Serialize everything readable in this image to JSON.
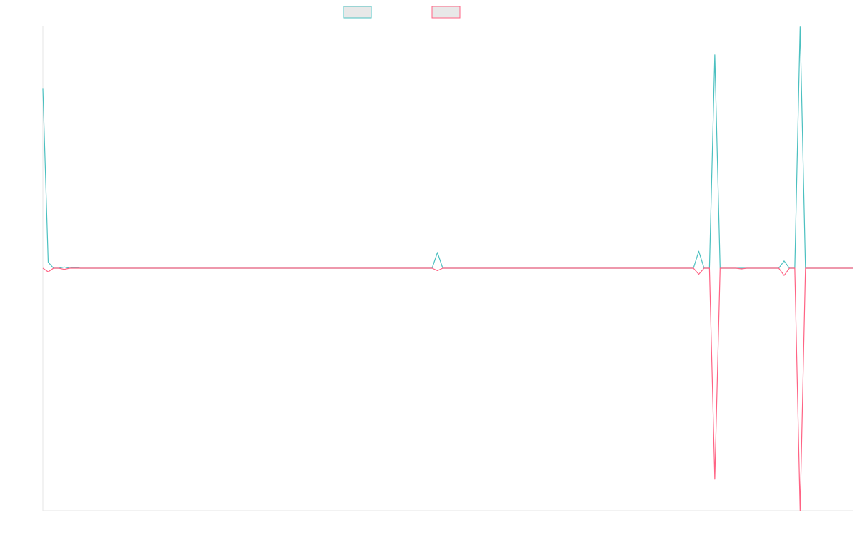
{
  "chart_data": {
    "type": "line",
    "title": "",
    "xlabel": "",
    "ylabel": "",
    "grid": false,
    "legend_position": "top-center",
    "ylim": [
      -100,
      100
    ],
    "x": [
      0,
      1,
      2,
      3,
      4,
      5,
      6,
      7,
      8,
      9,
      10,
      11,
      12,
      13,
      14,
      15,
      16,
      17,
      18,
      19,
      20,
      21,
      22,
      23,
      24,
      25,
      26,
      27,
      28,
      29,
      30,
      31,
      32,
      33,
      34,
      35,
      36,
      37,
      38,
      39,
      40,
      41,
      42,
      43,
      44,
      45,
      46,
      47,
      48,
      49,
      50,
      51,
      52,
      53,
      54,
      55,
      56,
      57,
      58,
      59,
      60,
      61,
      62,
      63,
      64,
      65,
      66,
      67,
      68,
      69,
      70,
      71,
      72,
      73,
      74,
      75,
      76,
      77,
      78,
      79,
      80,
      81,
      82,
      83,
      84,
      85,
      86,
      87,
      88,
      89,
      90,
      91,
      92,
      93,
      94,
      95,
      96,
      97,
      98,
      99,
      100,
      101,
      102,
      103,
      104,
      105,
      106,
      107,
      108,
      109,
      110,
      111,
      112,
      113,
      114,
      115,
      116,
      117,
      118,
      119,
      120,
      121,
      122,
      123,
      124,
      125,
      126,
      127,
      128,
      129,
      130,
      131,
      132,
      133,
      134,
      135,
      136,
      137,
      138,
      139,
      140,
      141,
      142,
      143,
      144,
      145,
      146,
      147,
      148,
      149,
      150,
      151,
      152
    ],
    "series": [
      {
        "color": "#4bc0c0",
        "values": [
          74,
          2.5,
          0,
          0,
          0.5,
          0,
          0.3,
          0,
          0,
          0,
          0,
          0,
          0,
          0,
          0,
          0,
          0,
          0,
          0,
          0,
          0,
          0,
          0,
          0,
          0,
          0,
          0,
          0,
          0,
          0,
          0,
          0,
          0,
          0,
          0,
          0,
          0,
          0,
          0,
          0,
          0,
          0,
          0,
          0,
          0,
          0,
          0,
          0,
          0,
          0,
          0,
          0,
          0,
          0,
          0,
          0,
          0,
          0,
          0,
          0,
          0,
          0,
          0,
          0,
          0,
          0,
          0,
          0,
          0,
          0,
          0,
          0,
          0,
          0,
          6.5,
          0,
          0,
          0,
          0,
          0,
          0,
          0,
          0,
          0,
          0,
          0,
          0,
          0,
          0,
          0,
          0,
          0,
          0,
          0,
          0,
          0,
          0,
          0,
          0,
          0,
          0,
          0,
          0,
          0,
          0,
          0,
          0,
          0,
          0,
          0,
          0,
          0,
          0,
          0,
          0,
          0,
          0,
          0,
          0,
          0,
          0,
          0,
          0,
          7,
          0,
          0,
          88,
          0,
          0,
          0,
          0,
          0,
          0,
          0,
          0,
          0,
          0,
          0,
          0,
          3,
          0,
          0,
          99.5,
          0,
          0,
          0,
          0,
          0,
          0,
          0,
          0,
          0,
          0
        ]
      },
      {
        "color": "#ff6384",
        "values": [
          0,
          -1.5,
          0,
          0,
          -0.5,
          0,
          0,
          0,
          0,
          0,
          0,
          0,
          0,
          0,
          0,
          0,
          0,
          0,
          0,
          0,
          0,
          0,
          0,
          0,
          0,
          0,
          0,
          0,
          0,
          0,
          0,
          0,
          0,
          0,
          0,
          0,
          0,
          0,
          0,
          0,
          0,
          0,
          0,
          0,
          0,
          0,
          0,
          0,
          0,
          0,
          0,
          0,
          0,
          0,
          0,
          0,
          0,
          0,
          0,
          0,
          0,
          0,
          0,
          0,
          0,
          0,
          0,
          0,
          0,
          0,
          0,
          0,
          0,
          0,
          -1,
          0,
          0,
          0,
          0,
          0,
          0,
          0,
          0,
          0,
          0,
          0,
          0,
          0,
          0,
          0,
          0,
          0,
          0,
          0,
          0,
          0,
          0,
          0,
          0,
          0,
          0,
          0,
          0,
          0,
          0,
          0,
          0,
          0,
          0,
          0,
          0,
          0,
          0,
          0,
          0,
          0,
          0,
          0,
          0,
          0,
          0,
          0,
          0,
          -2.5,
          0,
          0,
          -87,
          0,
          0,
          0,
          0,
          -0.3,
          0,
          0,
          0,
          0,
          0,
          0,
          0,
          -3,
          0,
          0,
          -100,
          0,
          0,
          0,
          0,
          0,
          0,
          0,
          0,
          0,
          0
        ]
      }
    ],
    "legend": [
      {
        "color": "#4bc0c0",
        "label": ""
      },
      {
        "color": "#ff6384",
        "label": ""
      }
    ]
  }
}
